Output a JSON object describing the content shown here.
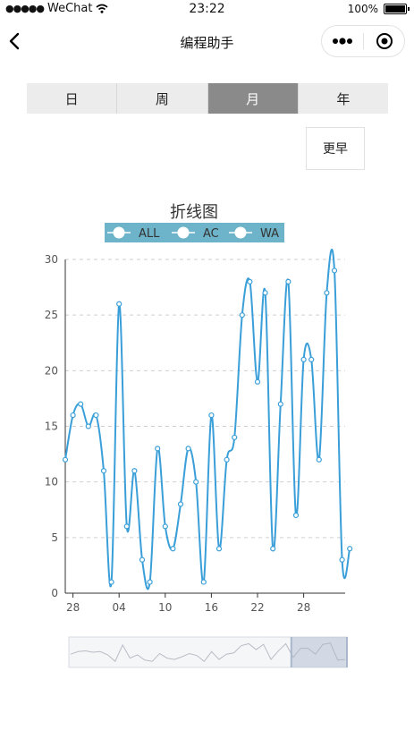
{
  "status_bar": {
    "carrier": "WeChat",
    "time": "23:22",
    "battery": "100%"
  },
  "nav": {
    "title": "编程助手"
  },
  "tabs": [
    {
      "label": "日",
      "active": false
    },
    {
      "label": "周",
      "active": false
    },
    {
      "label": "月",
      "active": true
    },
    {
      "label": "年",
      "active": false
    }
  ],
  "earlier_button": "更早",
  "colors": {
    "line": "#3a9fd9",
    "legend_bg": "#6db3c9",
    "tab_active": "#8a8a8a"
  },
  "chart_data": {
    "type": "line",
    "title": "折线图",
    "legend": [
      "ALL",
      "AC",
      "WA"
    ],
    "legend_position": "top",
    "x_tick_labels": [
      "28",
      "04",
      "10",
      "16",
      "22",
      "28"
    ],
    "ylim": [
      0,
      30
    ],
    "y_ticks": [
      0,
      5,
      10,
      15,
      20,
      25,
      30
    ],
    "grid": "horizontal-dashed",
    "series": [
      {
        "name": "ALL",
        "values": [
          12,
          16,
          17,
          15,
          16,
          11,
          1,
          26,
          6,
          11,
          3,
          1,
          13,
          6,
          4,
          8,
          13,
          10,
          1,
          16,
          4,
          12,
          14,
          25,
          28,
          19,
          27,
          4,
          17,
          28,
          7,
          21,
          21,
          12,
          27,
          29,
          3,
          4
        ]
      }
    ],
    "data_zoom": {
      "start_fraction": 0.8,
      "end_fraction": 1.0
    }
  }
}
